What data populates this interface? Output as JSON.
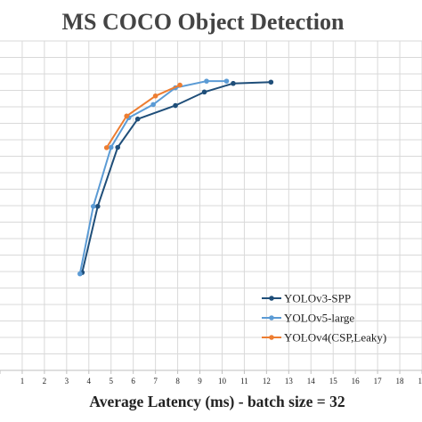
{
  "chart_data": {
    "type": "line",
    "title": "MS COCO Object Detection",
    "xlabel": "Average Latency (ms) - batch size = 32",
    "ylabel": "",
    "xlim": [
      0,
      19
    ],
    "ylim": [
      0,
      1
    ],
    "x_ticks": [
      "1",
      "2",
      "3",
      "4",
      "5",
      "6",
      "7",
      "8",
      "9",
      "10",
      "11",
      "12",
      "13",
      "14",
      "15",
      "16",
      "17",
      "18",
      "19"
    ],
    "y_ticks_shown": false,
    "grid": true,
    "legend_position": "bottom-right",
    "series": [
      {
        "name": "YOLOv3-SPP",
        "color": "#1f4e79",
        "x": [
          3.7,
          4.4,
          5.3,
          6.2,
          7.9,
          9.2,
          10.5,
          12.2
        ],
        "y": [
          0.297,
          0.498,
          0.677,
          0.763,
          0.804,
          0.845,
          0.871,
          0.875
        ]
      },
      {
        "name": "YOLOv5-large",
        "color": "#5b9bd5",
        "x": [
          3.6,
          4.2,
          5.0,
          5.8,
          6.9,
          7.9,
          9.3,
          10.2
        ],
        "y": [
          0.293,
          0.498,
          0.677,
          0.767,
          0.807,
          0.858,
          0.878,
          0.878
        ]
      },
      {
        "name": "YOLOv4(CSP,Leaky)",
        "color": "#ed7d31",
        "x": [
          4.8,
          5.7,
          7.0,
          8.1
        ],
        "y": [
          0.676,
          0.772,
          0.833,
          0.866
        ]
      }
    ]
  }
}
